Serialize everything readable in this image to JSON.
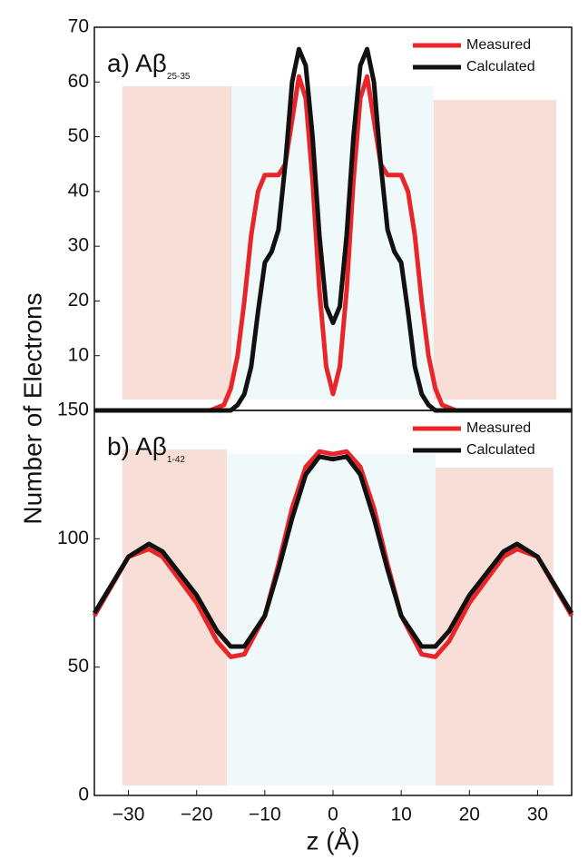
{
  "chart_data": [
    {
      "type": "line",
      "title": "a) Aβ",
      "title_subscript": "25-35",
      "y_label": "Number of Electrons",
      "x": [
        -35,
        -18,
        -16,
        -15,
        -14,
        -13,
        -12,
        -11,
        -10,
        -9,
        -8,
        -7,
        -6,
        -5,
        -4,
        -3,
        -2,
        -1,
        0,
        1,
        2,
        3,
        4,
        5,
        6,
        7,
        8,
        9,
        10,
        11,
        12,
        13,
        14,
        15,
        16,
        18,
        35
      ],
      "series": [
        {
          "name": "Measured",
          "color": "#e8262a",
          "values": [
            0,
            0,
            1,
            4,
            10,
            20,
            32,
            40,
            43,
            43,
            43,
            45,
            53,
            61,
            57,
            42,
            22,
            8,
            3,
            8,
            22,
            42,
            57,
            61,
            53,
            45,
            43,
            43,
            43,
            40,
            32,
            20,
            10,
            4,
            1,
            0,
            0
          ]
        },
        {
          "name": "Calculated",
          "color": "#111111",
          "values": [
            0,
            0,
            0,
            0,
            1,
            3,
            8,
            18,
            27,
            29,
            33,
            45,
            60,
            66,
            63,
            50,
            32,
            19,
            16,
            19,
            32,
            50,
            63,
            66,
            60,
            45,
            33,
            29,
            27,
            18,
            8,
            3,
            1,
            0,
            0,
            0,
            0
          ]
        }
      ],
      "xlim": [
        -35,
        35
      ],
      "ylim": [
        0,
        70
      ],
      "yticks": [
        10,
        20,
        30,
        40,
        50,
        60,
        70
      ],
      "legend": "upper right"
    },
    {
      "type": "line",
      "title": "b) Aβ",
      "title_subscript": "1-42",
      "x_label": "z (Å)",
      "x": [
        -35,
        -30,
        -27,
        -25,
        -20,
        -17,
        -15,
        -13,
        -10,
        -8,
        -6,
        -4,
        -2,
        0,
        2,
        4,
        6,
        8,
        10,
        13,
        15,
        17,
        20,
        25,
        27,
        30,
        35
      ],
      "series": [
        {
          "name": "Measured",
          "color": "#e8262a",
          "values": [
            70,
            93,
            96,
            93,
            75,
            60,
            54,
            55,
            70,
            90,
            112,
            128,
            134,
            133,
            134,
            128,
            112,
            90,
            70,
            55,
            54,
            60,
            75,
            93,
            96,
            93,
            70
          ]
        },
        {
          "name": "Calculated",
          "color": "#111111",
          "values": [
            71,
            93,
            98,
            95,
            78,
            64,
            58,
            58,
            70,
            88,
            108,
            125,
            132,
            131,
            132,
            125,
            108,
            88,
            70,
            58,
            58,
            64,
            78,
            95,
            98,
            93,
            71
          ]
        }
      ],
      "xlim": [
        -35,
        35
      ],
      "ylim": [
        0,
        150
      ],
      "yticks": [
        0,
        50,
        100,
        150
      ],
      "xticks": [
        {
          "value": -30,
          "label": "−30"
        },
        {
          "value": -20,
          "label": "−20"
        },
        {
          "value": -10,
          "label": "−10"
        },
        0,
        10,
        20,
        30
      ],
      "legend": "upper right"
    }
  ]
}
